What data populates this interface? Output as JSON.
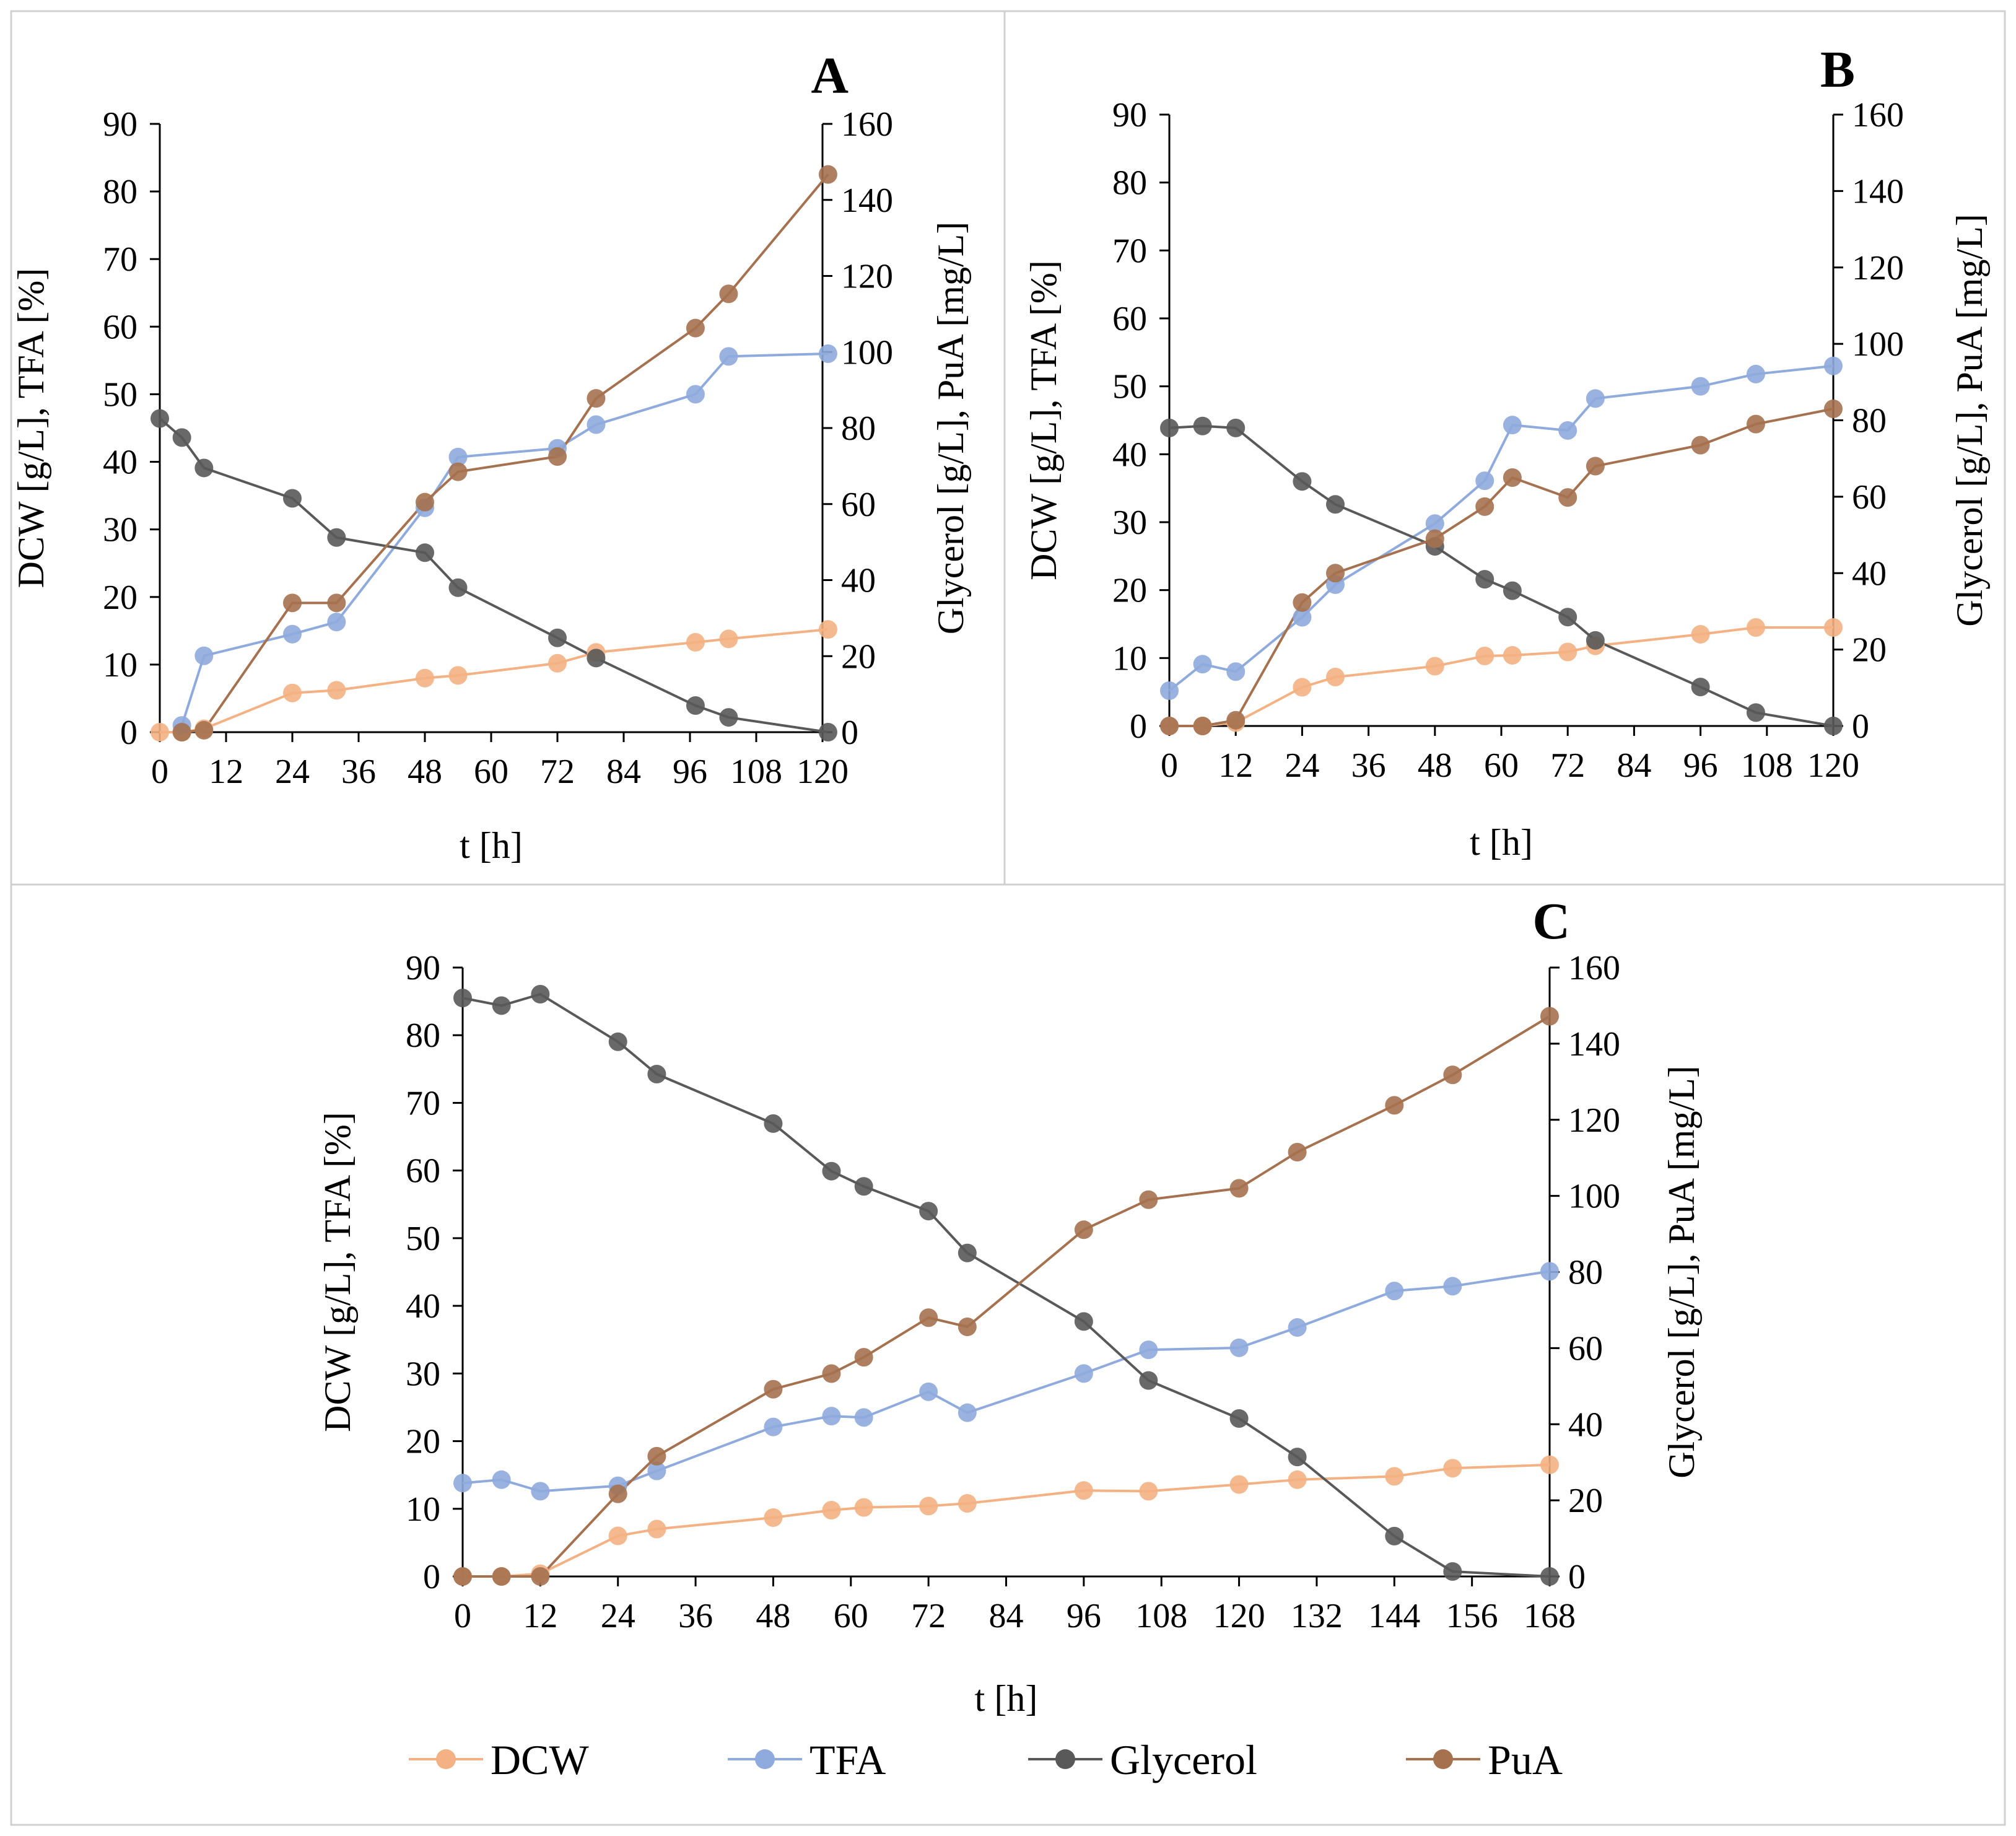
{
  "colors": {
    "DCW": "#f4b183",
    "TFA": "#8faadc",
    "Glycerol": "#595959",
    "PuA": "#a5714f",
    "DCW_marker": "#f4b183",
    "TFA_marker": "#8faadc",
    "Glycerol_marker": "#595959",
    "PuA_marker": "#a5714f"
  },
  "legend": {
    "items": [
      {
        "key": "DCW",
        "label": "DCW"
      },
      {
        "key": "TFA",
        "label": "TFA"
      },
      {
        "key": "Glycerol",
        "label": "Glycerol"
      },
      {
        "key": "PuA",
        "label": "PuA"
      }
    ]
  },
  "chart_data": [
    {
      "type": "line",
      "panel": "A",
      "xlabel": "t [h]",
      "ylabel": "DCW [g/L], TFA [%]",
      "y2label": "Glycerol [g/L], PuA [mg/L]",
      "xlim": [
        0,
        120
      ],
      "xticks": [
        0,
        12,
        24,
        36,
        48,
        60,
        72,
        84,
        96,
        108,
        120
      ],
      "ylim": [
        0,
        90
      ],
      "yticks": [
        0,
        10,
        20,
        30,
        40,
        50,
        60,
        70,
        80,
        90
      ],
      "y2lim": [
        0,
        160
      ],
      "y2ticks": [
        0,
        20,
        40,
        60,
        80,
        100,
        120,
        140,
        160
      ],
      "series": [
        {
          "name": "DCW",
          "axis": "left",
          "x": [
            0,
            4,
            8,
            24,
            32,
            48,
            54,
            72,
            79,
            97,
            103,
            121
          ],
          "y": [
            0,
            0,
            0.5,
            5.8,
            6.2,
            8,
            8.4,
            10.2,
            11.8,
            13.3,
            13.8,
            15.2
          ]
        },
        {
          "name": "TFA",
          "axis": "left",
          "x": [
            4,
            8,
            24,
            32,
            48,
            54,
            72,
            79,
            97,
            103,
            121
          ],
          "y": [
            1,
            11.3,
            14.5,
            16.3,
            33.2,
            40.7,
            42,
            45.5,
            50,
            55.6,
            56
          ]
        },
        {
          "name": "Glycerol",
          "axis": "right",
          "x": [
            0,
            4,
            8,
            24,
            32,
            48,
            54,
            72,
            79,
            97,
            103,
            121
          ],
          "y": [
            82.5,
            77.5,
            69.5,
            61.5,
            51.2,
            47.2,
            38,
            24.8,
            19.5,
            7,
            3.9,
            0
          ]
        },
        {
          "name": "PuA",
          "axis": "right",
          "x": [
            4,
            8,
            24,
            32,
            48,
            54,
            72,
            79,
            97,
            103,
            121
          ],
          "y": [
            0,
            0.5,
            34,
            34,
            60.5,
            68.5,
            72.5,
            87.8,
            106.3,
            115.3,
            146.7
          ]
        }
      ]
    },
    {
      "type": "line",
      "panel": "B",
      "xlabel": "t [h]",
      "ylabel": "DCW [g/L], TFA [%]",
      "y2label": "Glycerol [g/L], PuA [mg/L]",
      "xlim": [
        0,
        120
      ],
      "xticks": [
        0,
        12,
        24,
        36,
        48,
        60,
        72,
        84,
        96,
        108,
        120
      ],
      "ylim": [
        0,
        90
      ],
      "yticks": [
        0,
        10,
        20,
        30,
        40,
        50,
        60,
        70,
        80,
        90
      ],
      "y2lim": [
        0,
        160
      ],
      "y2ticks": [
        0,
        20,
        40,
        60,
        80,
        100,
        120,
        140,
        160
      ],
      "series": [
        {
          "name": "DCW",
          "axis": "left",
          "x": [
            0,
            6,
            12,
            24,
            30,
            48,
            57,
            62,
            72,
            77,
            96,
            106,
            120
          ],
          "y": [
            0,
            0,
            0.5,
            5.7,
            7.2,
            8.8,
            10.3,
            10.4,
            10.9,
            11.8,
            13.5,
            14.5,
            14.5
          ]
        },
        {
          "name": "TFA",
          "axis": "left",
          "x": [
            0,
            6,
            12,
            24,
            30,
            48,
            57,
            62,
            72,
            77,
            96,
            106,
            120
          ],
          "y": [
            5.2,
            9.1,
            8,
            16,
            20.8,
            29.8,
            36.1,
            44.3,
            43.5,
            48.2,
            50,
            51.8,
            53
          ]
        },
        {
          "name": "Glycerol",
          "axis": "right",
          "x": [
            0,
            6,
            12,
            24,
            30,
            48,
            57,
            62,
            72,
            77,
            96,
            106,
            120
          ],
          "y": [
            78,
            78.5,
            78,
            64,
            58,
            47,
            38.4,
            35.4,
            28.5,
            22.4,
            10.2,
            3.5,
            0
          ]
        },
        {
          "name": "PuA",
          "axis": "right",
          "x": [
            0,
            6,
            12,
            24,
            30,
            48,
            57,
            62,
            72,
            77,
            96,
            106,
            120
          ],
          "y": [
            0,
            0,
            1.5,
            32.3,
            40,
            49,
            57.4,
            65,
            59.8,
            68,
            73.5,
            79,
            83
          ]
        }
      ]
    },
    {
      "type": "line",
      "panel": "C",
      "xlabel": "t [h]",
      "ylabel": "DCW [g/L], TFA [%]",
      "y2label": "Glycerol [g/L], PuA [mg/L]",
      "xlim": [
        0,
        168
      ],
      "xticks": [
        0,
        12,
        24,
        36,
        48,
        60,
        72,
        84,
        96,
        108,
        120,
        132,
        144,
        156,
        168
      ],
      "ylim": [
        0,
        90
      ],
      "yticks": [
        0,
        10,
        20,
        30,
        40,
        50,
        60,
        70,
        80,
        90
      ],
      "y2lim": [
        0,
        160
      ],
      "y2ticks": [
        0,
        20,
        40,
        60,
        80,
        100,
        120,
        140,
        160
      ],
      "series": [
        {
          "name": "DCW",
          "axis": "left",
          "x": [
            0,
            6,
            12,
            24,
            30,
            48,
            57,
            62,
            72,
            78,
            96,
            106,
            120,
            129,
            144,
            153,
            168
          ],
          "y": [
            0,
            0,
            0.4,
            6,
            7,
            8.7,
            9.8,
            10.2,
            10.4,
            10.8,
            12.7,
            12.6,
            13.6,
            14.3,
            14.8,
            16,
            16.5
          ]
        },
        {
          "name": "TFA",
          "axis": "left",
          "x": [
            0,
            6,
            12,
            24,
            30,
            48,
            57,
            62,
            72,
            78,
            96,
            106,
            120,
            129,
            144,
            153,
            168
          ],
          "y": [
            13.8,
            14.3,
            12.6,
            13.4,
            15.6,
            22.1,
            23.7,
            23.5,
            27.3,
            24.2,
            30,
            33.5,
            33.8,
            36.8,
            42.2,
            42.9,
            45.1
          ]
        },
        {
          "name": "Glycerol",
          "axis": "right",
          "x": [
            0,
            6,
            12,
            24,
            30,
            48,
            57,
            62,
            72,
            78,
            96,
            106,
            120,
            129,
            144,
            153,
            168
          ],
          "y": [
            152,
            150,
            153,
            140.5,
            132,
            119,
            106.5,
            102.5,
            96,
            85,
            67,
            51.5,
            41.5,
            31.4,
            10.6,
            1.3,
            0
          ]
        },
        {
          "name": "PuA",
          "axis": "right",
          "x": [
            0,
            6,
            12,
            24,
            30,
            48,
            57,
            62,
            72,
            78,
            96,
            106,
            120,
            129,
            144,
            153,
            168
          ],
          "y": [
            0,
            0,
            0,
            21.7,
            31.6,
            49.2,
            53.3,
            57.6,
            68,
            65.6,
            91.1,
            99,
            102,
            111.5,
            123.8,
            131.8,
            147.2
          ]
        }
      ]
    }
  ]
}
